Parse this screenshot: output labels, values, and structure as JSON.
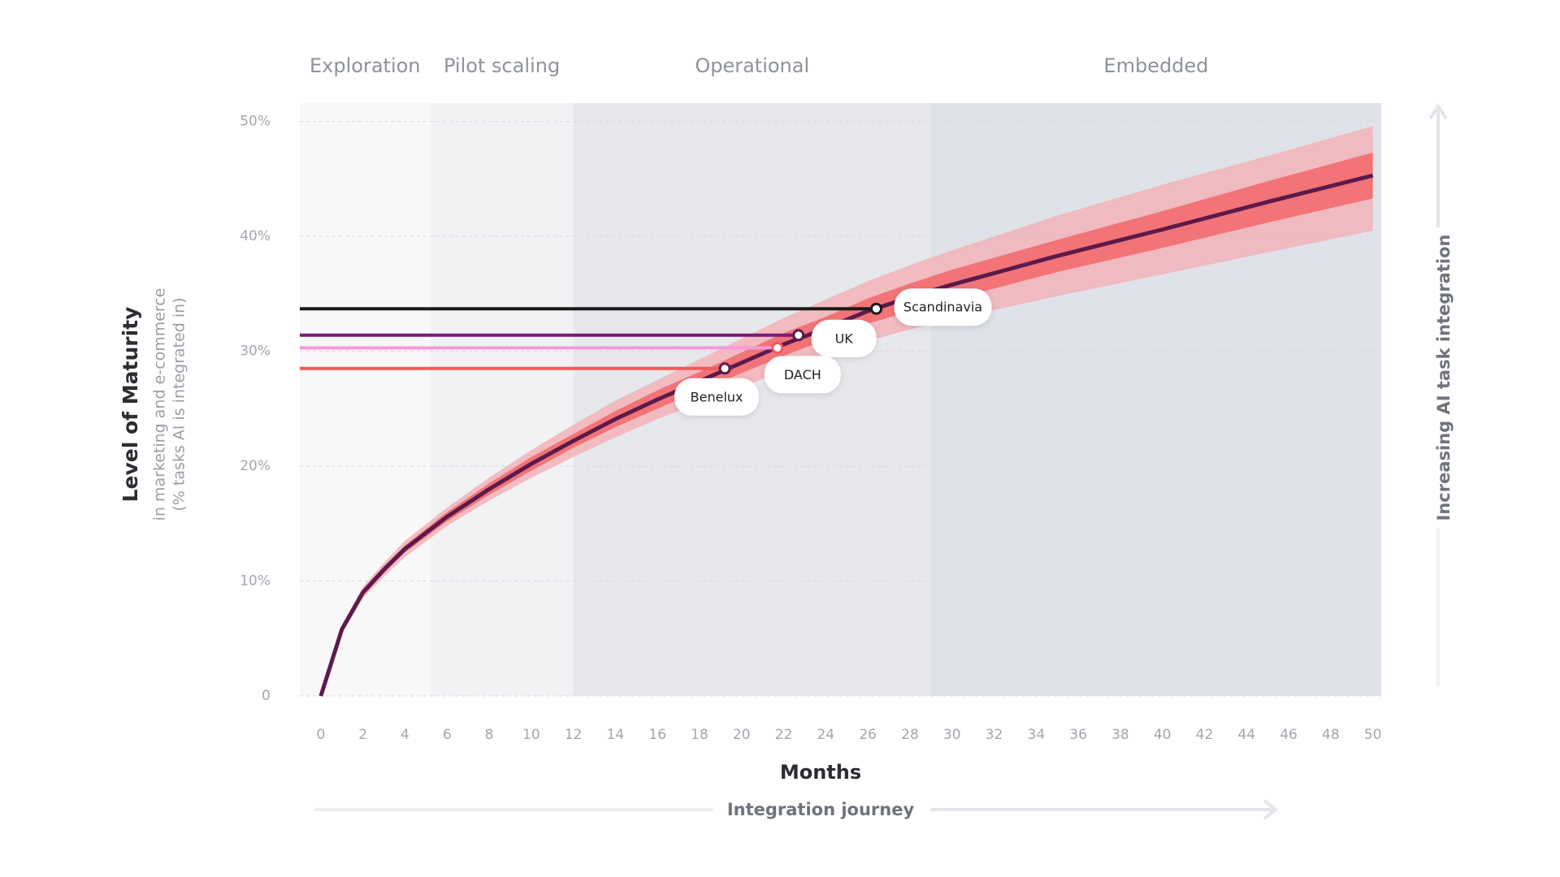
{
  "chart_data": {
    "type": "line",
    "x_label": "Months",
    "y_label": "Level of Maturity",
    "y_sublabel": [
      "in marketing and e-commerce",
      "(% tasks AI is integrated in)"
    ],
    "journey_label": "Integration journey",
    "right_label": "Increasing AI task integration",
    "x": [
      0,
      1,
      2,
      3,
      4,
      6,
      8,
      10,
      12,
      14,
      16,
      18,
      20,
      22,
      24,
      26,
      28,
      30,
      35,
      40,
      45,
      50
    ],
    "values": [
      0,
      5.8,
      9.0,
      11.0,
      12.8,
      15.6,
      18.0,
      20.2,
      22.2,
      24.1,
      25.8,
      27.4,
      29.0,
      30.6,
      32.0,
      33.5,
      34.7,
      35.8,
      38.3,
      40.6,
      43.0,
      45.3
    ],
    "color": "#5c1a4c",
    "bands": [
      {
        "color": "#f2b3b8",
        "lower": [
          0,
          5.4,
          8.5,
          10.4,
          12.1,
          14.8,
          17.0,
          19.0,
          20.8,
          22.5,
          24.1,
          25.5,
          26.9,
          28.3,
          29.5,
          30.9,
          31.9,
          32.8,
          34.8,
          36.7,
          38.6,
          40.5
        ],
        "upper": [
          0.3,
          6.2,
          9.5,
          11.6,
          13.5,
          16.4,
          19.0,
          21.4,
          23.6,
          25.7,
          27.5,
          29.3,
          31.1,
          32.9,
          34.5,
          36.1,
          37.5,
          38.8,
          41.8,
          44.5,
          47.0,
          49.6
        ]
      },
      {
        "color": "#f2676a",
        "lower": [
          0,
          5.6,
          8.7,
          10.7,
          12.5,
          15.2,
          17.5,
          19.6,
          21.6,
          23.4,
          25.0,
          26.6,
          28.1,
          29.6,
          31.0,
          32.4,
          33.5,
          34.5,
          36.9,
          39.0,
          41.2,
          43.3
        ],
        "upper": [
          0.2,
          6.0,
          9.3,
          11.3,
          13.1,
          16.0,
          18.5,
          20.8,
          22.8,
          24.8,
          26.6,
          28.2,
          29.9,
          31.6,
          33.0,
          34.6,
          35.9,
          37.1,
          39.7,
          42.2,
          44.8,
          47.3
        ]
      }
    ],
    "phases": [
      {
        "label": "Exploration",
        "end": 5.2,
        "color": "#f8f8f9"
      },
      {
        "label": "Pilot scaling",
        "end": 12,
        "color": "#f1f2f4"
      },
      {
        "label": "Operational",
        "end": 29,
        "color": "#e6e8ec"
      },
      {
        "label": "Embedded",
        "color": "#dfe2e8"
      }
    ],
    "regions": [
      {
        "name": "Scandinavia",
        "x": 26.4,
        "y": 33.7,
        "color": "#1a1a1a"
      },
      {
        "name": "UK",
        "x": 22.7,
        "y": 31.4,
        "color": "#7a1a78"
      },
      {
        "name": "DACH",
        "x": 21.7,
        "y": 30.3,
        "color": "#f49ad9"
      },
      {
        "name": "Benelux",
        "x": 19.2,
        "y": 28.5,
        "color": "#f05a5a"
      }
    ],
    "xlim": [
      -1,
      50.4
    ],
    "ylim": [
      0,
      51.6
    ],
    "xticks": [
      0,
      2,
      4,
      6,
      8,
      10,
      12,
      14,
      16,
      18,
      20,
      22,
      24,
      26,
      28,
      30,
      32,
      34,
      36,
      38,
      40,
      42,
      44,
      46,
      48,
      50
    ],
    "yticks": [
      0,
      {
        "value": 10,
        "label": "10%"
      },
      {
        "value": 20,
        "label": "20%"
      },
      {
        "value": 30,
        "label": "30%"
      },
      {
        "value": 40,
        "label": "40%"
      },
      {
        "value": 50,
        "label": "50%"
      }
    ],
    "grid": true
  }
}
